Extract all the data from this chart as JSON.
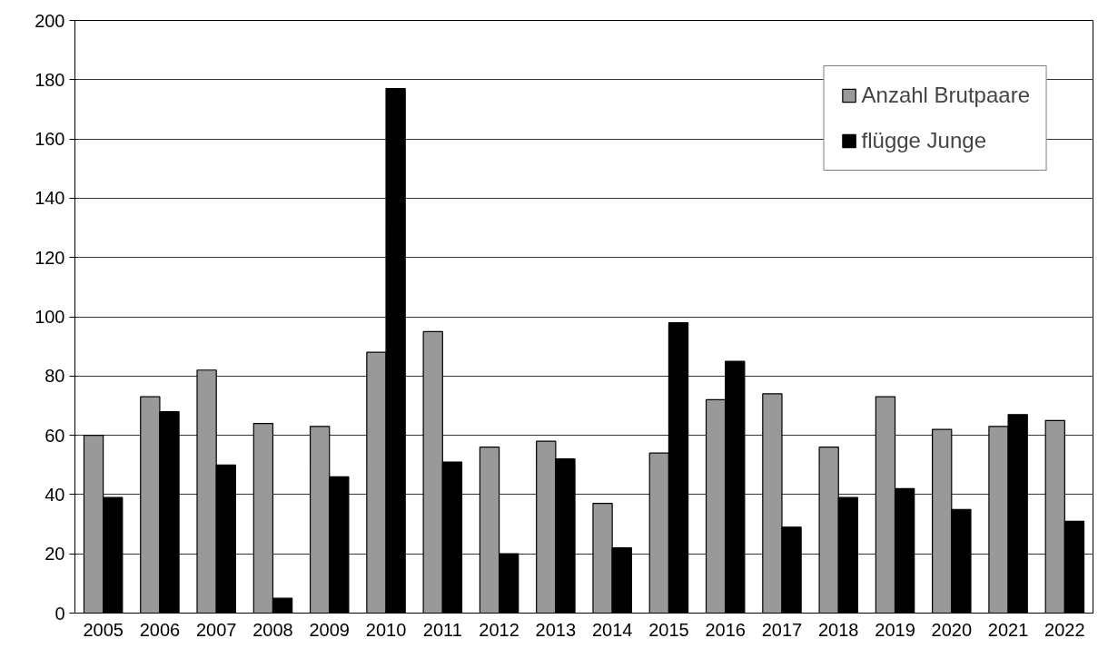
{
  "chart_data": {
    "type": "bar",
    "categories": [
      "2005",
      "2006",
      "2007",
      "2008",
      "2009",
      "2010",
      "2011",
      "2012",
      "2013",
      "2014",
      "2015",
      "2016",
      "2017",
      "2018",
      "2019",
      "2020",
      "2021",
      "2022"
    ],
    "series": [
      {
        "name": "Anzahl Brutpaare",
        "color": "#999999",
        "values": [
          60,
          73,
          82,
          64,
          63,
          88,
          95,
          56,
          58,
          37,
          54,
          72,
          74,
          56,
          73,
          62,
          63,
          65
        ]
      },
      {
        "name": "flügge Junge",
        "color": "#000000",
        "values": [
          39,
          68,
          50,
          5,
          46,
          177,
          51,
          20,
          52,
          22,
          98,
          85,
          29,
          39,
          42,
          35,
          67,
          31
        ]
      }
    ],
    "ylim": [
      0,
      200
    ],
    "yticks": [
      0,
      20,
      40,
      60,
      80,
      100,
      120,
      140,
      160,
      180,
      200
    ],
    "grid": "y",
    "legend": "top right"
  }
}
